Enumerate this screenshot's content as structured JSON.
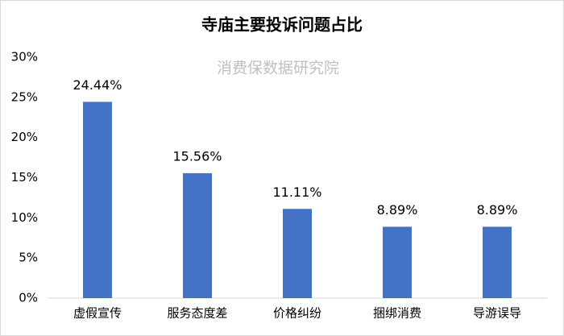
{
  "chart_data": {
    "type": "bar",
    "title": "寺庙主要投诉问题占比",
    "subtitle": "消费保数据研究院",
    "categories": [
      "虚假宣传",
      "服务态度差",
      "价格纠纷",
      "捆绑消费",
      "导游误导"
    ],
    "values": [
      24.44,
      15.56,
      11.11,
      8.89,
      8.89
    ],
    "value_labels": [
      "24.44%",
      "15.56%",
      "11.11%",
      "8.89%",
      "8.89%"
    ],
    "color": "#4472c4",
    "ylim": [
      0,
      30
    ],
    "yticks": [
      {
        "value": 0,
        "label": "0%"
      },
      {
        "value": 5,
        "label": "5%"
      },
      {
        "value": 10,
        "label": "10%"
      },
      {
        "value": 15,
        "label": "15%"
      },
      {
        "value": 20,
        "label": "20%"
      },
      {
        "value": 25,
        "label": "25%"
      },
      {
        "value": 30,
        "label": "30%"
      }
    ],
    "grid": false
  }
}
